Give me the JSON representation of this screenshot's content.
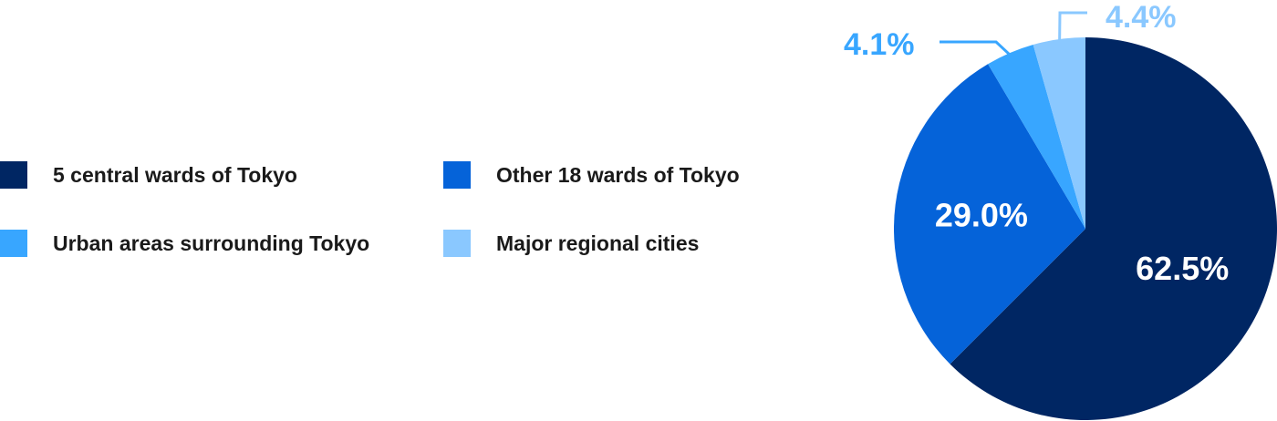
{
  "chart_data": {
    "type": "pie",
    "title": "",
    "start": "12 o'clock",
    "direction": "clockwise",
    "slices": [
      {
        "label": "5 central wards of Tokyo",
        "value": 62.5,
        "value_label": "62.5%",
        "color": "#002663"
      },
      {
        "label": "Other 18 wards of Tokyo",
        "value": 29.0,
        "value_label": "29.0%",
        "color": "#0563d9"
      },
      {
        "label": "Urban areas surrounding Tokyo",
        "value": 4.1,
        "value_label": "4.1%",
        "color": "#38a6ff"
      },
      {
        "label": "Major regional cities",
        "value": 4.4,
        "value_label": "4.4%",
        "color": "#8ac8ff"
      }
    ],
    "legend_position": "left"
  }
}
